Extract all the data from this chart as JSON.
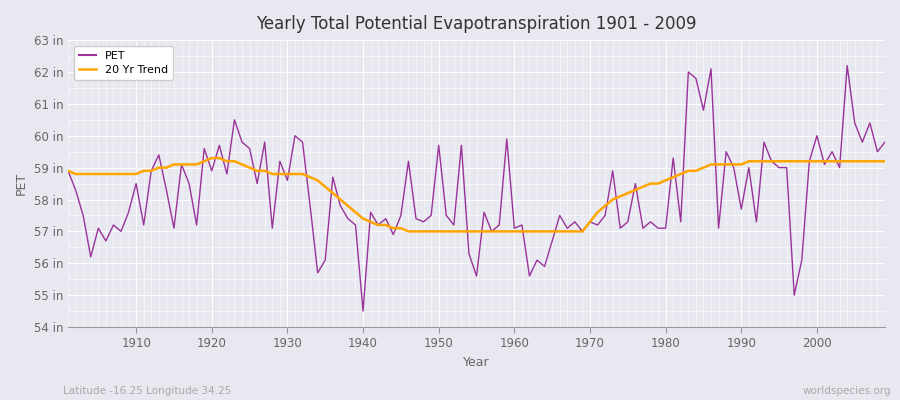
{
  "title": "Yearly Total Potential Evapotranspiration 1901 - 2009",
  "ylabel": "PET",
  "xlabel": "Year",
  "ylim": [
    54,
    63
  ],
  "yticks": [
    54,
    55,
    56,
    57,
    58,
    59,
    60,
    61,
    62,
    63
  ],
  "ytick_labels": [
    "54 in",
    "55 in",
    "56 in",
    "57 in",
    "58 in",
    "59 in",
    "60 in",
    "61 in",
    "62 in",
    "63 in"
  ],
  "xlim": [
    1901,
    2009
  ],
  "xticks": [
    1910,
    1920,
    1930,
    1940,
    1950,
    1960,
    1970,
    1980,
    1990,
    2000
  ],
  "pet_color": "#993399",
  "trend_color": "#FFA500",
  "bg_color": "#E8E8F0",
  "plot_bg_color": "#E8E8F0",
  "grid_color": "#FFFFFF",
  "footer_left": "Latitude -16.25 Longitude 34.25",
  "footer_right": "worldspecies.org",
  "legend_labels": [
    "PET",
    "20 Yr Trend"
  ],
  "years": [
    1901,
    1902,
    1903,
    1904,
    1905,
    1906,
    1907,
    1908,
    1909,
    1910,
    1911,
    1912,
    1913,
    1914,
    1915,
    1916,
    1917,
    1918,
    1919,
    1920,
    1921,
    1922,
    1923,
    1924,
    1925,
    1926,
    1927,
    1928,
    1929,
    1930,
    1931,
    1932,
    1933,
    1934,
    1935,
    1936,
    1937,
    1938,
    1939,
    1940,
    1941,
    1942,
    1943,
    1944,
    1945,
    1946,
    1947,
    1948,
    1949,
    1950,
    1951,
    1952,
    1953,
    1954,
    1955,
    1956,
    1957,
    1958,
    1959,
    1960,
    1961,
    1962,
    1963,
    1964,
    1965,
    1966,
    1967,
    1968,
    1969,
    1970,
    1971,
    1972,
    1973,
    1974,
    1975,
    1976,
    1977,
    1978,
    1979,
    1980,
    1981,
    1982,
    1983,
    1984,
    1985,
    1986,
    1987,
    1988,
    1989,
    1990,
    1991,
    1992,
    1993,
    1994,
    1995,
    1996,
    1997,
    1998,
    1999,
    2000,
    2001,
    2002,
    2003,
    2004,
    2005,
    2006,
    2007,
    2008,
    2009
  ],
  "pet_values": [
    58.9,
    58.3,
    57.5,
    56.2,
    57.1,
    56.7,
    57.2,
    57.0,
    57.6,
    58.5,
    57.2,
    58.9,
    59.4,
    58.3,
    57.1,
    59.1,
    58.5,
    57.2,
    59.6,
    58.9,
    59.7,
    58.8,
    60.5,
    59.8,
    59.6,
    58.5,
    59.8,
    57.1,
    59.2,
    58.6,
    60.0,
    59.8,
    57.8,
    55.7,
    56.1,
    58.7,
    57.8,
    57.4,
    57.2,
    54.5,
    57.6,
    57.2,
    57.4,
    56.9,
    57.5,
    59.2,
    57.4,
    57.3,
    57.5,
    59.7,
    57.5,
    57.2,
    59.7,
    56.3,
    55.6,
    57.6,
    57.0,
    57.2,
    59.9,
    57.1,
    57.2,
    55.6,
    56.1,
    55.9,
    56.7,
    57.5,
    57.1,
    57.3,
    57.0,
    57.3,
    57.2,
    57.5,
    58.9,
    57.1,
    57.3,
    58.5,
    57.1,
    57.3,
    57.1,
    57.1,
    59.3,
    57.3,
    62.0,
    61.8,
    60.8,
    62.1,
    57.1,
    59.5,
    59.0,
    57.7,
    59.0,
    57.3,
    59.8,
    59.2,
    59.0,
    59.0,
    55.0,
    56.1,
    59.2,
    60.0,
    59.1,
    59.5,
    59.0,
    62.2,
    60.4,
    59.8,
    60.4,
    59.5,
    59.8
  ],
  "trend_values": [
    58.9,
    58.8,
    58.8,
    58.8,
    58.8,
    58.8,
    58.8,
    58.8,
    58.8,
    58.8,
    58.9,
    58.9,
    59.0,
    59.0,
    59.1,
    59.1,
    59.1,
    59.1,
    59.2,
    59.3,
    59.3,
    59.2,
    59.2,
    59.1,
    59.0,
    58.9,
    58.9,
    58.8,
    58.8,
    58.8,
    58.8,
    58.8,
    58.7,
    58.6,
    58.4,
    58.2,
    58.0,
    57.8,
    57.6,
    57.4,
    57.3,
    57.2,
    57.2,
    57.1,
    57.1,
    57.0,
    57.0,
    57.0,
    57.0,
    57.0,
    57.0,
    57.0,
    57.0,
    57.0,
    57.0,
    57.0,
    57.0,
    57.0,
    57.0,
    57.0,
    57.0,
    57.0,
    57.0,
    57.0,
    57.0,
    57.0,
    57.0,
    57.0,
    57.0,
    57.3,
    57.6,
    57.8,
    58.0,
    58.1,
    58.2,
    58.3,
    58.4,
    58.5,
    58.5,
    58.6,
    58.7,
    58.8,
    58.9,
    58.9,
    59.0,
    59.1,
    59.1,
    59.1,
    59.1,
    59.1,
    59.2,
    59.2,
    59.2,
    59.2,
    59.2,
    59.2,
    59.2,
    59.2,
    59.2,
    59.2,
    59.2,
    59.2,
    59.2,
    59.2,
    59.2,
    59.2,
    59.2,
    59.2,
    59.2
  ]
}
